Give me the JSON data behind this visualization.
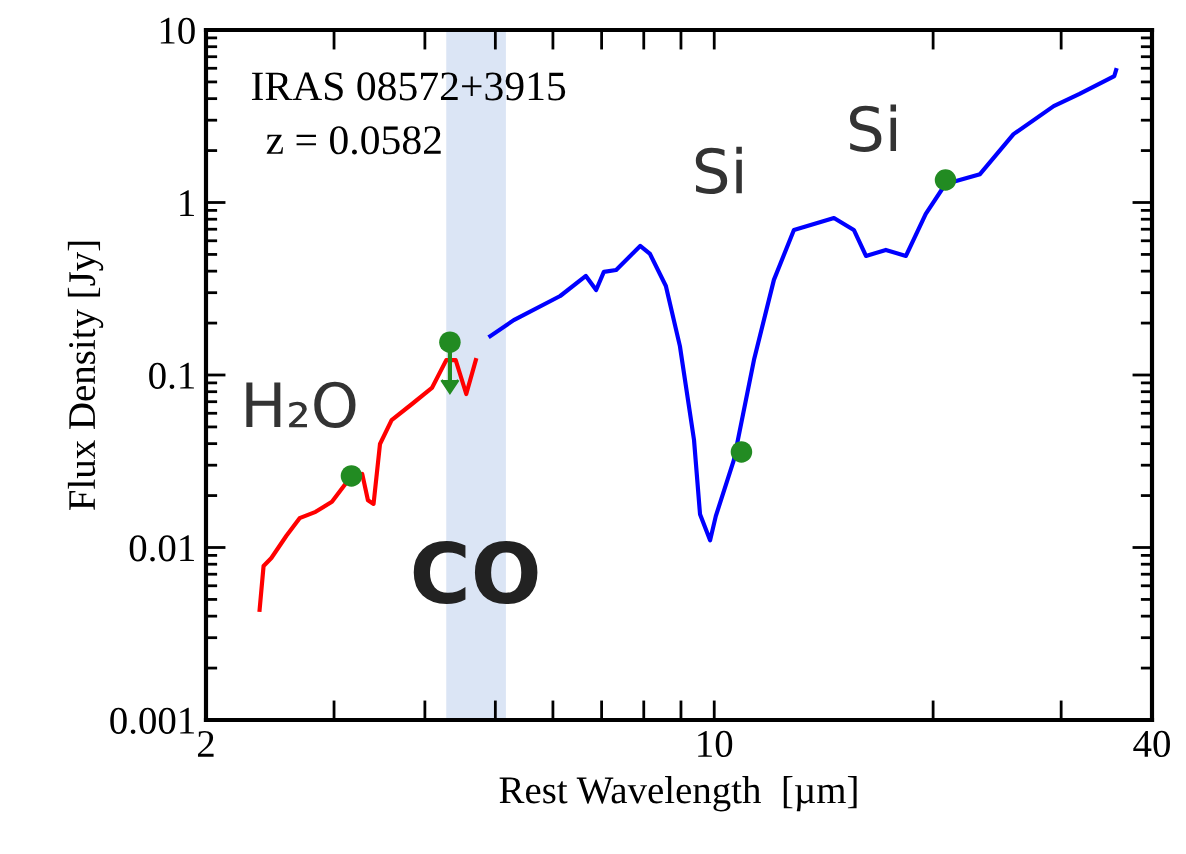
{
  "chart_data": {
    "type": "line",
    "xlabel": "Rest Wavelength  [µm]",
    "ylabel": "Flux Density [Jy]",
    "log": "xy",
    "grid": false,
    "legend": false,
    "marker": "none",
    "line_style": "solid",
    "xlim": [
      2,
      40
    ],
    "ylim": [
      0.001,
      10
    ],
    "xticks": [
      2,
      {
        "value": 3,
        "label": null
      },
      {
        "value": 4,
        "label": null
      },
      {
        "value": 5,
        "label": null
      },
      {
        "value": 6,
        "label": null
      },
      {
        "value": 7,
        "label": null
      },
      {
        "value": 8,
        "label": null
      },
      {
        "value": 9,
        "label": null
      },
      10,
      {
        "value": 20,
        "label": null
      },
      {
        "value": 30,
        "label": null
      },
      40
    ],
    "yticks": [
      0.001,
      0.01,
      0.1,
      1,
      10
    ],
    "series": [
      {
        "color": "#ff0000",
        "x": [
          2.37,
          2.4,
          2.46,
          2.58,
          2.69,
          2.83,
          2.98,
          3.17,
          3.28,
          3.34,
          3.4,
          3.47,
          3.6,
          3.84,
          4.09,
          4.28,
          4.41,
          4.56,
          4.7
        ],
        "values": [
          0.00435,
          0.00781,
          0.00869,
          0.0117,
          0.0148,
          0.0161,
          0.0184,
          0.026,
          0.0267,
          0.0188,
          0.0179,
          0.0398,
          0.0548,
          0.0679,
          0.0841,
          0.122,
          0.122,
          0.0776,
          0.122
        ]
      },
      {
        "color": "#0000ff",
        "x": [
          4.92,
          5.3,
          6.14,
          6.66,
          6.88,
          7.05,
          7.33,
          7.91,
          8.16,
          8.58,
          8.97,
          9.38,
          9.56,
          9.87,
          10.05,
          10.64,
          11.34,
          12.08,
          12.87,
          14.61,
          15.56,
          16.17,
          17.22,
          18.35,
          19.54,
          20.8,
          23.2,
          25.8,
          29.3,
          31.8,
          35.5,
          35.7
        ],
        "values": [
          0.168,
          0.208,
          0.287,
          0.375,
          0.311,
          0.396,
          0.406,
          0.56,
          0.503,
          0.328,
          0.147,
          0.042,
          0.0156,
          0.011,
          0.0152,
          0.0321,
          0.122,
          0.356,
          0.693,
          0.813,
          0.693,
          0.49,
          0.531,
          0.49,
          0.858,
          1.28,
          1.46,
          2.49,
          3.62,
          4.26,
          5.41,
          5.86
        ]
      },
      {
        "type": "scatter",
        "color": "#228b22",
        "marker": "circle",
        "x": [
          3.17,
          4.33,
          10.9,
          20.8
        ],
        "values": [
          0.026,
          0.155,
          0.0358,
          1.35
        ],
        "errors": [
          null,
          [
            0.0935,
            0.155
          ],
          null,
          null
        ]
      }
    ],
    "bands": [
      {
        "axis": "x",
        "from": 4.28,
        "to": 5.17,
        "color": "#dbe5f5"
      }
    ],
    "annotations": [
      "IRAS 08572+3915",
      "z = 0.0582",
      "H₂O",
      "CO",
      "Si",
      "Si"
    ]
  }
}
